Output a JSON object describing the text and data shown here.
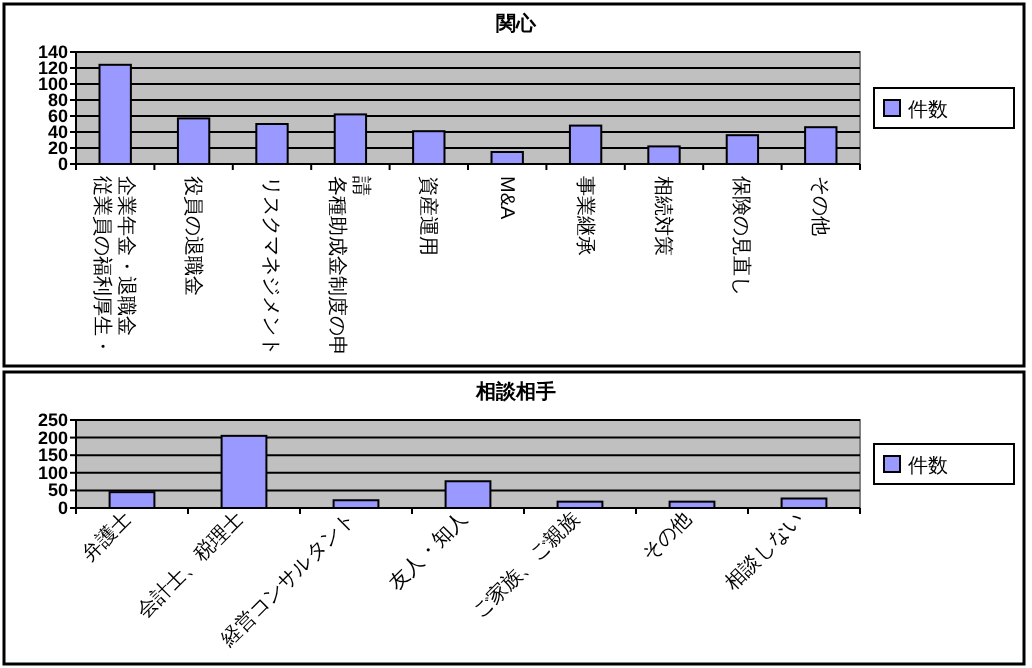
{
  "chart_data": [
    {
      "type": "bar",
      "title": "関心",
      "categories": [
        "従業員の福利厚生・企業年金・退職金",
        "役員の退職金",
        "リスクマネジメント",
        "各種助成金制度の申請",
        "資産運用",
        "M&A",
        "事業継承",
        "相続対策",
        "保険の見直し",
        "その他"
      ],
      "series": [
        {
          "name": "件数",
          "color": "#9999ff",
          "values": [
            124,
            57,
            50,
            62,
            41,
            15,
            48,
            22,
            36,
            46
          ]
        }
      ],
      "ylim": [
        0,
        140
      ],
      "yticks": [
        0,
        20,
        40,
        60,
        80,
        100,
        120,
        140
      ],
      "grid": "y",
      "legend": "right"
    },
    {
      "type": "bar",
      "title": "相談相手",
      "categories": [
        "弁護士",
        "会計士、税理士",
        "経営コンサルタント",
        "友人・知人",
        "ご家族、ご親族",
        "その他",
        "相談しない"
      ],
      "series": [
        {
          "name": "件数",
          "color": "#9999ff",
          "values": [
            45,
            205,
            22,
            76,
            18,
            18,
            27
          ]
        }
      ],
      "ylim": [
        0,
        250
      ],
      "yticks": [
        0,
        50,
        100,
        150,
        200,
        250
      ],
      "grid": "y",
      "legend": "right"
    }
  ]
}
